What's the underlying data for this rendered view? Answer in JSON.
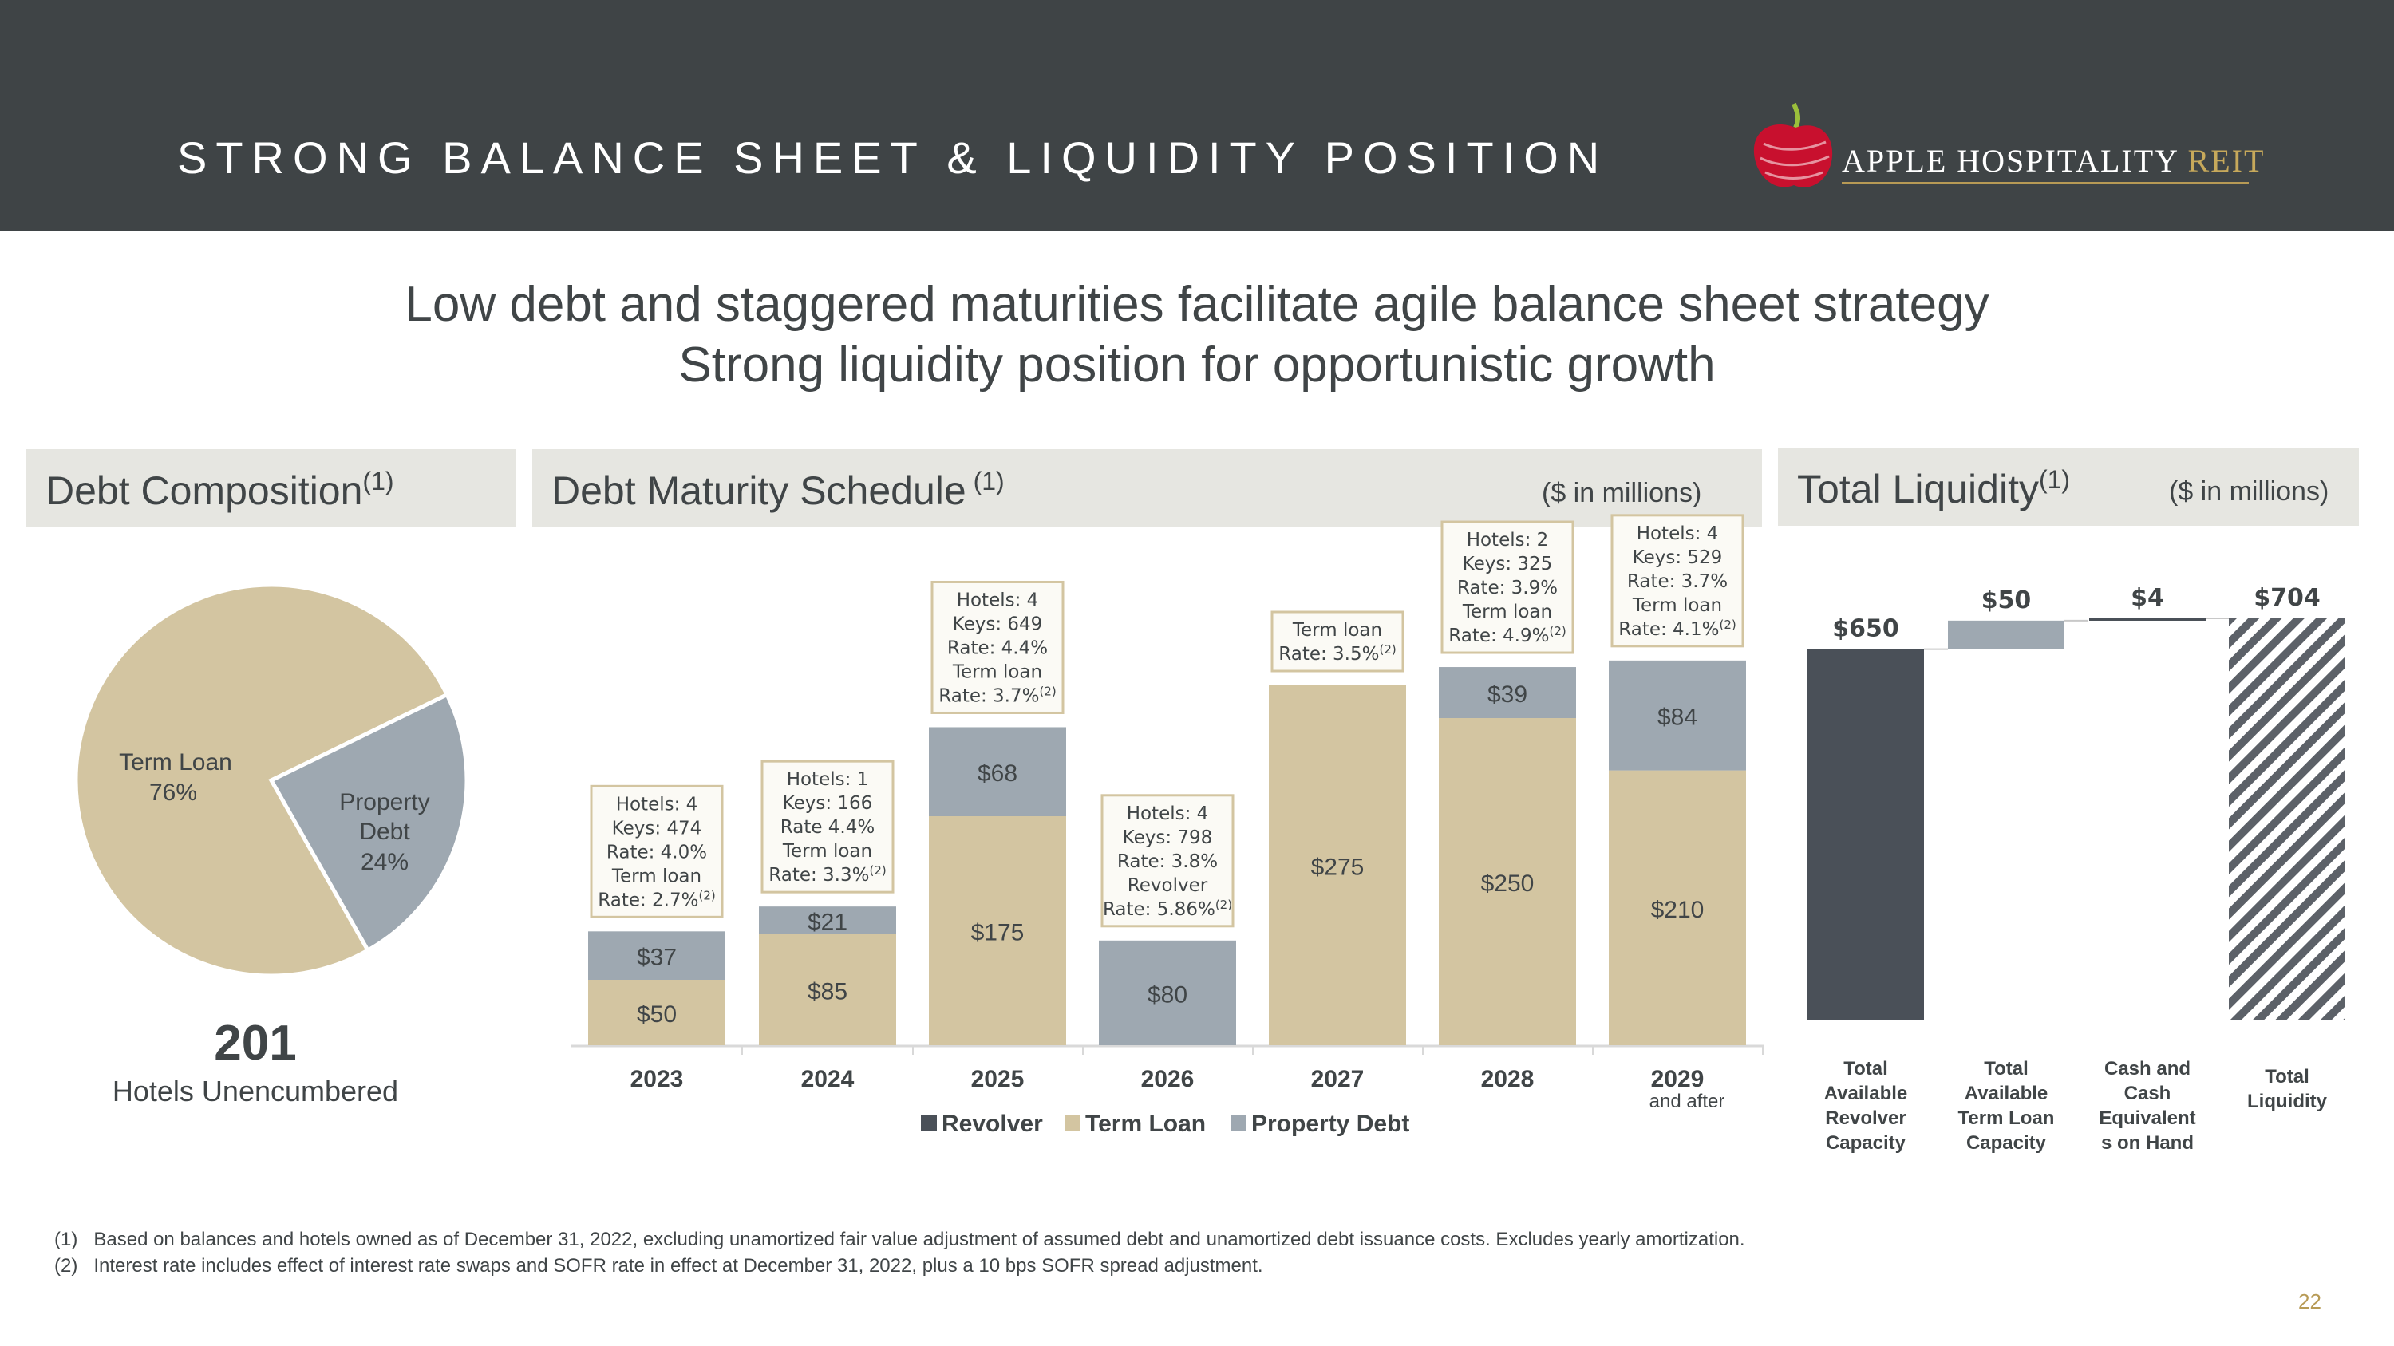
{
  "header": {
    "title": "STRONG BALANCE SHEET & LIQUIDITY POSITION"
  },
  "logo": {
    "text_main": "APPLE HOSPITALITY ",
    "text_accent": "REIT"
  },
  "subtitle": {
    "line1": "Low debt and staggered maturities facilitate agile balance sheet strategy",
    "line2": "Strong liquidity position for opportunistic growth"
  },
  "panels": {
    "composition": {
      "title": "Debt Composition",
      "sup": "(1)"
    },
    "maturity": {
      "title": "Debt Maturity Schedule",
      "sup": " (1)",
      "units": "($ in millions)"
    },
    "liquidity": {
      "title": "Total Liquidity",
      "sup": "(1)",
      "units": "($ in millions)"
    }
  },
  "unencumbered": {
    "count": "201",
    "label": "Hotels Unencumbered"
  },
  "colors": {
    "header_bg": "#3f4446",
    "revolver": "#4a5058",
    "term_loan": "#d3c5a1",
    "property_debt": "#9ea8b1",
    "panel_bg": "#e6e6e1",
    "gold": "#b79a55",
    "apple_red": "#c8102e"
  },
  "chart_data": [
    {
      "type": "pie",
      "title": "Debt Composition",
      "slices": [
        {
          "label": "Term Loan",
          "pct_label": "76%",
          "value": 76,
          "color": "#d3c5a1"
        },
        {
          "label": "Property Debt",
          "pct_label": "24%",
          "value": 24,
          "color": "#9ea8b1"
        }
      ]
    },
    {
      "type": "bar",
      "stacked": true,
      "title": "Debt Maturity Schedule",
      "units": "($ in millions)",
      "categories": [
        "2023",
        "2024",
        "2025",
        "2026",
        "2027",
        "2028",
        "2029"
      ],
      "category_sub": [
        "",
        "",
        "",
        "",
        "",
        "",
        "and after"
      ],
      "series": [
        {
          "name": "Revolver",
          "color": "#4a5058",
          "values": [
            0,
            0,
            0,
            0,
            0,
            0,
            0
          ]
        },
        {
          "name": "Term Loan",
          "color": "#d3c5a1",
          "values": [
            50,
            85,
            175,
            0,
            275,
            250,
            210
          ]
        },
        {
          "name": "Property Debt",
          "color": "#9ea8b1",
          "values": [
            37,
            21,
            68,
            80,
            0,
            39,
            84
          ]
        }
      ],
      "labels": {
        "Term Loan": [
          "$50",
          "$85",
          "$175",
          "",
          "$275",
          "$250",
          "$210"
        ],
        "Property Debt": [
          "$37",
          "$21",
          "$68",
          "$80",
          "",
          "$39",
          "$84"
        ]
      },
      "ylim": [
        0,
        300
      ],
      "callouts": [
        [
          "Hotels: 4",
          "Keys: 474",
          "Rate: 4.0%",
          "Term loan",
          "Rate: 2.7%|(2)"
        ],
        [
          "Hotels: 1",
          "Keys: 166",
          "Rate 4.4%",
          "Term loan",
          "Rate: 3.3%|(2)"
        ],
        [
          "Hotels: 4",
          "Keys: 649",
          "Rate: 4.4%",
          "Term loan",
          "Rate: 3.7%|(2)"
        ],
        [
          "Hotels: 4",
          "Keys: 798",
          "Rate: 3.8%",
          "Revolver",
          "Rate: 5.86%|(2)"
        ],
        [
          "Term loan",
          "Rate: 3.5%|(2)"
        ],
        [
          "Hotels: 2",
          "Keys: 325",
          "Rate: 3.9%",
          "Term loan",
          "Rate: 4.9%|(2)"
        ],
        [
          "Hotels: 4",
          "Keys: 529",
          "Rate: 3.7%",
          "Term loan",
          "Rate: 4.1%|(2)"
        ]
      ],
      "legend": [
        "Revolver",
        "Term Loan",
        "Property Debt"
      ]
    },
    {
      "type": "bar",
      "subtype": "waterfall",
      "title": "Total Liquidity",
      "units": "($ in millions)",
      "categories": [
        [
          "Total",
          "Available",
          "Revolver",
          "Capacity"
        ],
        [
          "Total",
          "Available",
          "Term Loan",
          "Capacity"
        ],
        [
          "Cash and",
          "Cash",
          "Equivalent",
          "s on Hand"
        ],
        [
          "Total",
          "Liquidity"
        ]
      ],
      "values": [
        650,
        50,
        4,
        704
      ],
      "value_labels": [
        "$650",
        "$50",
        "$4",
        "$704"
      ],
      "kinds": [
        "base",
        "increment",
        "increment",
        "total"
      ],
      "ylim": [
        0,
        704
      ]
    }
  ],
  "footnotes": [
    {
      "num": "(1)",
      "text": "Based on balances and hotels owned as of December 31, 2022, excluding unamortized fair value adjustment of assumed debt and unamortized debt issuance costs. Excludes yearly amortization."
    },
    {
      "num": "(2)",
      "text": "Interest rate includes effect of interest rate swaps and SOFR rate in effect at December 31, 2022, plus a 10 bps SOFR spread adjustment."
    }
  ],
  "page_number": "22"
}
